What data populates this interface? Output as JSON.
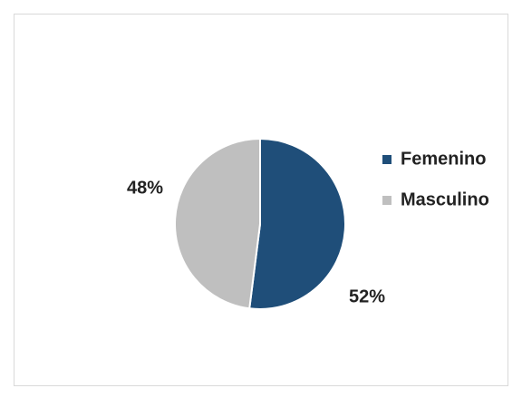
{
  "chart_data": {
    "type": "pie",
    "categories": [
      "Femenino",
      "Masculino"
    ],
    "values": [
      52,
      48
    ],
    "value_labels": [
      "52%",
      "48%"
    ],
    "colors": [
      "#1f4e79",
      "#bfbfbf"
    ],
    "legend": "right"
  }
}
